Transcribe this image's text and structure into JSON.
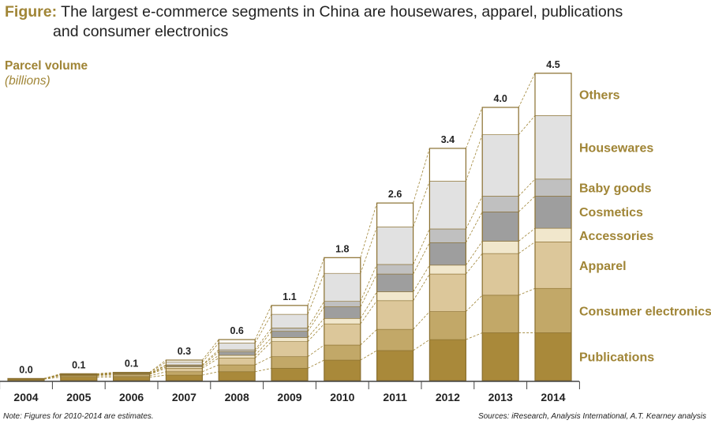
{
  "title": {
    "label": "Figure:",
    "line1": "The largest e-commerce segments in China are housewares, apparel, publications",
    "line2": "and consumer electronics"
  },
  "colors": {
    "Publications": "#a9893a",
    "Consumer electronics": "#c2a868",
    "Apparel": "#dcc79a",
    "Accessories": "#f1e7cc",
    "Cosmetics": "#9e9e9e",
    "Baby goods": "#c0c0c0",
    "Housewares": "#e1e1e1",
    "Others": "#ffffff",
    "accent": "#a08536",
    "border": "#8a7030"
  },
  "chart_data": {
    "type": "bar",
    "stacked": true,
    "ylabel": "Parcel volume",
    "yunit": "(billions)",
    "categories": [
      "2004",
      "2005",
      "2006",
      "2007",
      "2008",
      "2009",
      "2010",
      "2011",
      "2012",
      "2013",
      "2014"
    ],
    "totals": [
      "0.0",
      "0.1",
      "0.1",
      "0.3",
      "0.6",
      "1.1",
      "1.8",
      "2.6",
      "3.4",
      "4.0",
      "4.5"
    ],
    "total_values": [
      0.03,
      0.1,
      0.12,
      0.3,
      0.6,
      1.1,
      1.8,
      2.6,
      3.4,
      4.0,
      4.5
    ],
    "series": [
      {
        "name": "Publications",
        "values": [
          0.02,
          0.05,
          0.05,
          0.08,
          0.13,
          0.18,
          0.3,
          0.44,
          0.6,
          0.7,
          0.7
        ]
      },
      {
        "name": "Consumer electronics",
        "values": [
          0.005,
          0.02,
          0.02,
          0.05,
          0.1,
          0.17,
          0.22,
          0.31,
          0.41,
          0.55,
          0.65
        ]
      },
      {
        "name": "Apparel",
        "values": [
          0.005,
          0.01,
          0.02,
          0.05,
          0.1,
          0.22,
          0.31,
          0.42,
          0.55,
          0.61,
          0.68
        ]
      },
      {
        "name": "Accessories",
        "values": [
          0.0,
          0.005,
          0.005,
          0.02,
          0.04,
          0.06,
          0.08,
          0.13,
          0.13,
          0.18,
          0.2
        ]
      },
      {
        "name": "Cosmetics",
        "values": [
          0.0,
          0.005,
          0.005,
          0.02,
          0.05,
          0.09,
          0.17,
          0.26,
          0.33,
          0.43,
          0.47
        ]
      },
      {
        "name": "Baby goods",
        "values": [
          0.0,
          0.0,
          0.005,
          0.01,
          0.03,
          0.05,
          0.08,
          0.14,
          0.2,
          0.23,
          0.25
        ]
      },
      {
        "name": "Housewares",
        "values": [
          0.0,
          0.005,
          0.01,
          0.04,
          0.1,
          0.2,
          0.41,
          0.55,
          0.7,
          0.9,
          0.93
        ]
      },
      {
        "name": "Others",
        "values": [
          0.0,
          0.005,
          0.005,
          0.03,
          0.05,
          0.13,
          0.23,
          0.35,
          0.48,
          0.4,
          0.62
        ]
      }
    ],
    "ylim": [
      0,
      4.5
    ]
  },
  "footer": {
    "note": "Note: Figures for 2010-2014 are estimates.",
    "source": "Sources: iResearch, Analysis International, A.T. Kearney analysis"
  }
}
